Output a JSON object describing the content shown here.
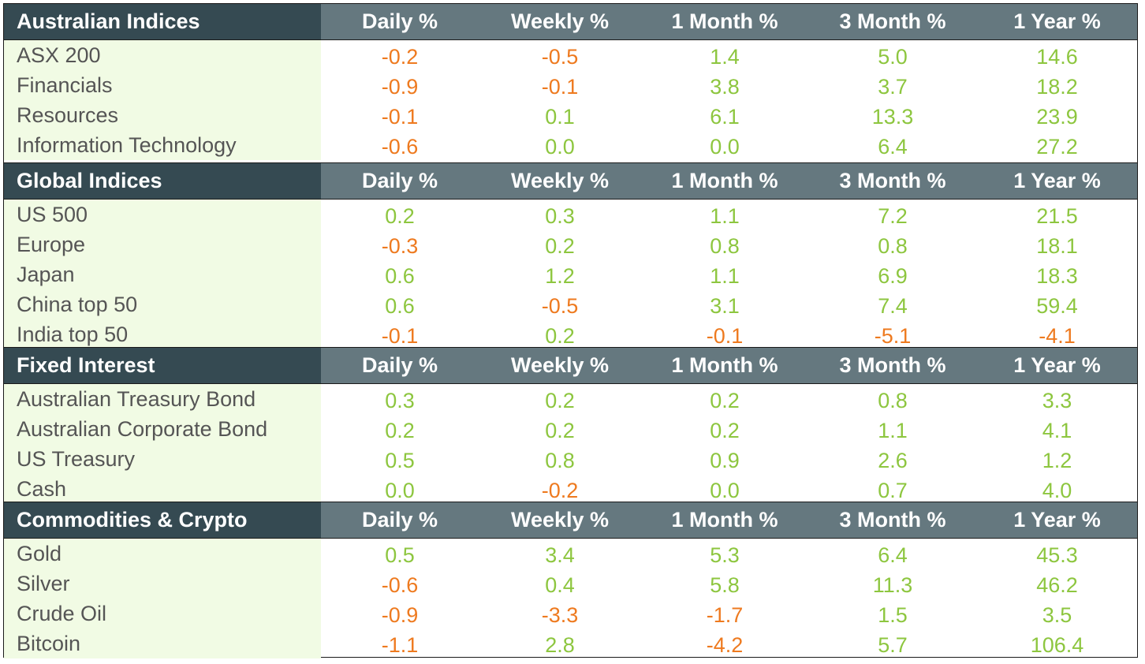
{
  "columns": [
    "Daily %",
    "Weekly %",
    "1 Month %",
    "3 Month %",
    "1 Year %"
  ],
  "colors": {
    "header_dark": "#354a52",
    "header_mid": "#65787f",
    "label_bg": "#f1fbe4",
    "negative": "#ee7a1f",
    "positive": "#8dc63f"
  },
  "sections": [
    {
      "title": "Australian Indices",
      "rows": [
        {
          "label": "ASX 200",
          "values": [
            "-0.2",
            "-0.5",
            "1.4",
            "5.0",
            "14.6"
          ]
        },
        {
          "label": "Financials",
          "values": [
            "-0.9",
            "-0.1",
            "3.8",
            "3.7",
            "18.2"
          ]
        },
        {
          "label": "Resources",
          "values": [
            "-0.1",
            "0.1",
            "6.1",
            "13.3",
            "23.9"
          ]
        },
        {
          "label": "Information Technology",
          "values": [
            "-0.6",
            "0.0",
            "0.0",
            "6.4",
            "27.2"
          ]
        }
      ]
    },
    {
      "title": "Global Indices",
      "rows": [
        {
          "label": "US 500",
          "values": [
            "0.2",
            "0.3",
            "1.1",
            "7.2",
            "21.5"
          ]
        },
        {
          "label": "Europe",
          "values": [
            "-0.3",
            "0.2",
            "0.8",
            "0.8",
            "18.1"
          ]
        },
        {
          "label": "Japan",
          "values": [
            "0.6",
            "1.2",
            "1.1",
            "6.9",
            "18.3"
          ]
        },
        {
          "label": "China top 50",
          "values": [
            "0.6",
            "-0.5",
            "3.1",
            "7.4",
            "59.4"
          ]
        },
        {
          "label": "India top 50",
          "values": [
            "-0.1",
            "0.2",
            "-0.1",
            "-5.1",
            "-4.1"
          ]
        }
      ]
    },
    {
      "title": "Fixed Interest",
      "rows": [
        {
          "label": "Australian Treasury Bond",
          "values": [
            "0.3",
            "0.2",
            "0.2",
            "0.8",
            "3.3"
          ]
        },
        {
          "label": "Australian Corporate Bond",
          "values": [
            "0.2",
            "0.2",
            "0.2",
            "1.1",
            "4.1"
          ]
        },
        {
          "label": "US Treasury",
          "values": [
            "0.5",
            "0.8",
            "0.9",
            "2.6",
            "1.2"
          ]
        },
        {
          "label": "Cash",
          "values": [
            "0.0",
            "-0.2",
            "0.0",
            "0.7",
            "4.0"
          ]
        }
      ]
    },
    {
      "title": "Commodities & Crypto",
      "rows": [
        {
          "label": "Gold",
          "values": [
            "0.5",
            "3.4",
            "5.3",
            "6.4",
            "45.3"
          ]
        },
        {
          "label": "Silver",
          "values": [
            "-0.6",
            "0.4",
            "5.8",
            "11.3",
            "46.2"
          ]
        },
        {
          "label": "Crude Oil",
          "values": [
            "-0.9",
            "-3.3",
            "-1.7",
            "1.5",
            "3.5"
          ]
        },
        {
          "label": "Bitcoin",
          "values": [
            "-1.1",
            "2.8",
            "-4.2",
            "5.7",
            "106.4"
          ]
        }
      ]
    }
  ]
}
